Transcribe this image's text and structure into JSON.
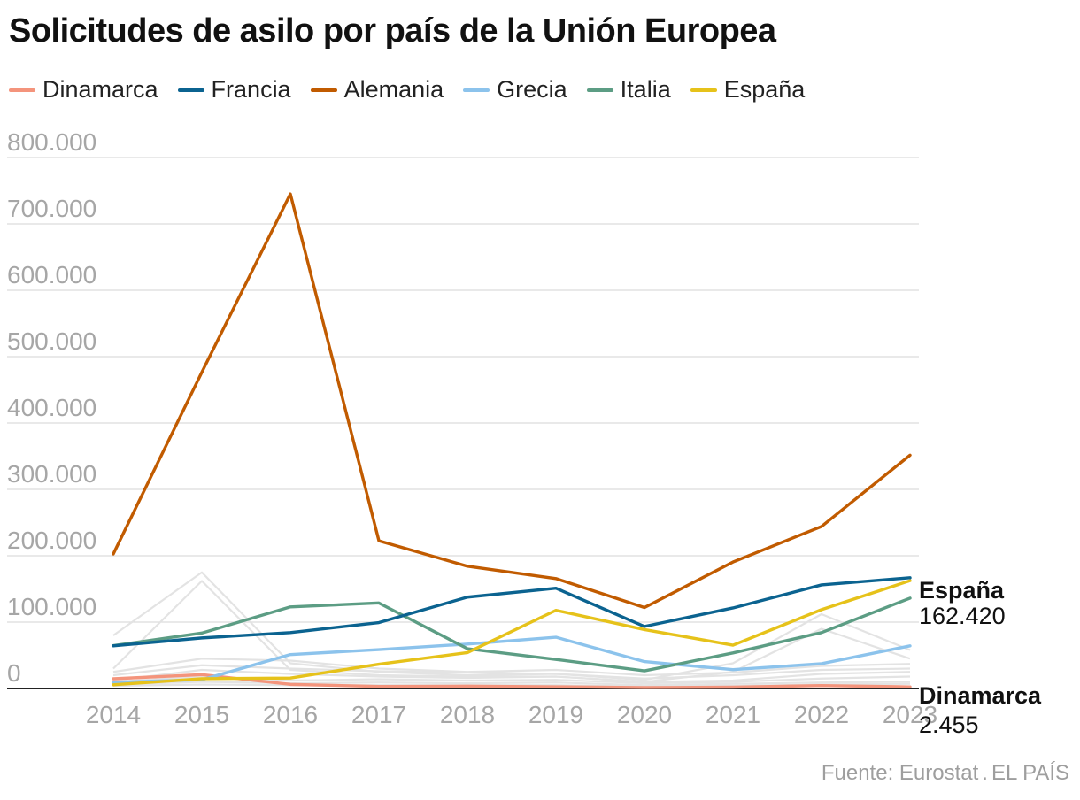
{
  "chart_data": {
    "type": "line",
    "title": "Solicitudes de asilo por país de la Unión Europea",
    "x": [
      "2014",
      "2015",
      "2016",
      "2017",
      "2018",
      "2019",
      "2020",
      "2021",
      "2022",
      "2023"
    ],
    "ylim": [
      0,
      800000
    ],
    "yticks": [
      0,
      100000,
      200000,
      300000,
      400000,
      500000,
      600000,
      700000,
      800000
    ],
    "ytick_labels": [
      "0",
      "100.000",
      "200.000",
      "300.000",
      "400.000",
      "500.000",
      "600.000",
      "700.000",
      "800.000"
    ],
    "grid": true,
    "legend_position": "top-left",
    "series": [
      {
        "name": "Dinamarca",
        "color": "#f4947c",
        "values": [
          14680,
          20935,
          6180,
          3125,
          3520,
          2650,
          1420,
          2010,
          4475,
          2455
        ]
      },
      {
        "name": "Francia",
        "color": "#0b6390",
        "values": [
          64310,
          76165,
          84270,
          99330,
          137665,
          151070,
          93475,
          121370,
          156105,
          166880
        ]
      },
      {
        "name": "Alemania",
        "color": "#c15b00",
        "values": [
          202645,
          476510,
          745155,
          222560,
          184180,
          165615,
          121955,
          190545,
          244130,
          351510
        ]
      },
      {
        "name": "Grecia",
        "color": "#8cc3ec",
        "values": [
          9430,
          13205,
          51110,
          58650,
          66965,
          77275,
          40560,
          28355,
          37370,
          64285
        ]
      },
      {
        "name": "Italia",
        "color": "#5c9d84",
        "values": [
          64625,
          83540,
          122960,
          128850,
          59950,
          43770,
          26535,
          53610,
          84290,
          136135
        ]
      },
      {
        "name": "España",
        "color": "#e6c21a",
        "values": [
          5615,
          14780,
          15755,
          36610,
          54050,
          117800,
          88762,
          65295,
          118840,
          162420
        ]
      }
    ],
    "background_series": [
      [
        80000,
        175000,
        38000,
        25000,
        20000,
        22000,
        13000,
        38000,
        112000,
        58000
      ],
      [
        30000,
        162000,
        28000,
        20000,
        18000,
        18000,
        10000,
        25000,
        90000,
        45000
      ],
      [
        25000,
        45000,
        42000,
        30000,
        25000,
        28000,
        20000,
        24000,
        34000,
        37000
      ],
      [
        20000,
        35000,
        30000,
        26000,
        24000,
        22000,
        15000,
        20000,
        28000,
        30000
      ],
      [
        12000,
        28000,
        22000,
        18000,
        16000,
        18000,
        10000,
        12000,
        22000,
        25000
      ],
      [
        10000,
        18000,
        12000,
        14000,
        12000,
        13000,
        8000,
        10000,
        15000,
        18000
      ],
      [
        6000,
        10000,
        8000,
        9000,
        8000,
        9000,
        5000,
        7000,
        9000,
        10000
      ],
      [
        4000,
        6000,
        5000,
        5000,
        5000,
        5000,
        3000,
        4000,
        6000,
        7000
      ]
    ],
    "annotations": [
      {
        "label": "España",
        "value": "162.420"
      },
      {
        "label": "Dinamarca",
        "value": "2.455"
      }
    ],
    "background_color": "#e3e3e3",
    "grid_color": "#dcdcdc",
    "axis_color": "#222222",
    "tick_color": "#a6a6a6"
  },
  "source": {
    "label": "Fuente: Eurostat",
    "publisher": "EL PAÍS"
  }
}
